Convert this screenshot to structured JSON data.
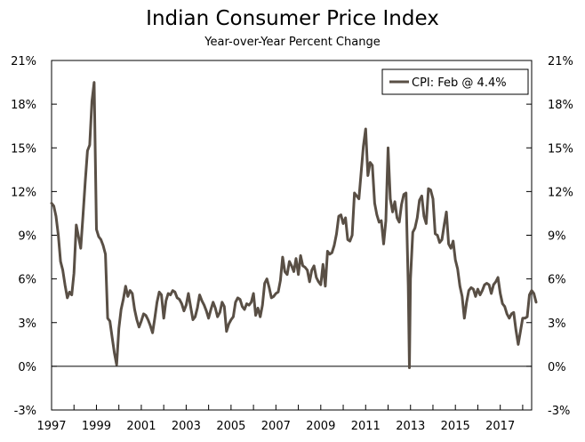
{
  "chart_data": {
    "type": "line",
    "title": "Indian Consumer Price Index",
    "subtitle": "Year-over-Year Percent Change",
    "xlabel": "",
    "ylabel": "",
    "xlim": [
      1997,
      2018.4
    ],
    "ylim": [
      -3,
      21
    ],
    "y_ticks": [
      "-3%",
      "0%",
      "3%",
      "6%",
      "9%",
      "12%",
      "15%",
      "18%",
      "21%"
    ],
    "x_ticks": [
      "1997",
      "1999",
      "2001",
      "2003",
      "2005",
      "2007",
      "2009",
      "2011",
      "2013",
      "2015",
      "2017"
    ],
    "grid": false,
    "legend": "top-right",
    "line_color": "#594F45",
    "series": [
      {
        "name": "CPI: Feb @ 4.4%",
        "points": [
          [
            1997.0,
            11.2
          ],
          [
            1997.1,
            11.0
          ],
          [
            1997.2,
            10.3
          ],
          [
            1997.3,
            9.0
          ],
          [
            1997.4,
            7.2
          ],
          [
            1997.5,
            6.6
          ],
          [
            1997.6,
            5.6
          ],
          [
            1997.7,
            4.7
          ],
          [
            1997.8,
            5.1
          ],
          [
            1997.9,
            4.9
          ],
          [
            1998.0,
            6.4
          ],
          [
            1998.1,
            9.7
          ],
          [
            1998.2,
            8.9
          ],
          [
            1998.3,
            8.1
          ],
          [
            1998.4,
            10.3
          ],
          [
            1998.5,
            12.7
          ],
          [
            1998.6,
            14.8
          ],
          [
            1998.7,
            15.2
          ],
          [
            1998.8,
            18.2
          ],
          [
            1998.9,
            19.5
          ],
          [
            1999.0,
            9.4
          ],
          [
            1999.1,
            8.9
          ],
          [
            1999.2,
            8.7
          ],
          [
            1999.3,
            8.3
          ],
          [
            1999.4,
            7.7
          ],
          [
            1999.5,
            3.3
          ],
          [
            1999.6,
            3.1
          ],
          [
            1999.7,
            2.0
          ],
          [
            1999.8,
            0.9
          ],
          [
            1999.9,
            0.1
          ],
          [
            2000.0,
            2.6
          ],
          [
            2000.1,
            3.9
          ],
          [
            2000.2,
            4.6
          ],
          [
            2000.3,
            5.5
          ],
          [
            2000.4,
            4.8
          ],
          [
            2000.5,
            5.2
          ],
          [
            2000.6,
            5.0
          ],
          [
            2000.7,
            3.9
          ],
          [
            2000.8,
            3.2
          ],
          [
            2000.9,
            2.7
          ],
          [
            2001.0,
            3.1
          ],
          [
            2001.1,
            3.6
          ],
          [
            2001.2,
            3.5
          ],
          [
            2001.3,
            3.2
          ],
          [
            2001.4,
            2.8
          ],
          [
            2001.5,
            2.3
          ],
          [
            2001.6,
            3.3
          ],
          [
            2001.7,
            4.4
          ],
          [
            2001.8,
            5.1
          ],
          [
            2001.9,
            4.9
          ],
          [
            2002.0,
            3.3
          ],
          [
            2002.1,
            4.5
          ],
          [
            2002.2,
            5.0
          ],
          [
            2002.3,
            4.9
          ],
          [
            2002.4,
            5.2
          ],
          [
            2002.5,
            5.1
          ],
          [
            2002.6,
            4.7
          ],
          [
            2002.7,
            4.6
          ],
          [
            2002.8,
            4.3
          ],
          [
            2002.9,
            3.8
          ],
          [
            2003.0,
            4.2
          ],
          [
            2003.1,
            5.0
          ],
          [
            2003.2,
            4.1
          ],
          [
            2003.3,
            3.2
          ],
          [
            2003.4,
            3.4
          ],
          [
            2003.5,
            4.0
          ],
          [
            2003.6,
            4.9
          ],
          [
            2003.7,
            4.5
          ],
          [
            2003.8,
            4.2
          ],
          [
            2003.9,
            3.8
          ],
          [
            2004.0,
            3.3
          ],
          [
            2004.1,
            3.9
          ],
          [
            2004.2,
            4.4
          ],
          [
            2004.3,
            4.0
          ],
          [
            2004.4,
            3.4
          ],
          [
            2004.5,
            3.7
          ],
          [
            2004.6,
            4.4
          ],
          [
            2004.7,
            4.1
          ],
          [
            2004.8,
            2.4
          ],
          [
            2004.9,
            2.9
          ],
          [
            2005.0,
            3.2
          ],
          [
            2005.1,
            3.4
          ],
          [
            2005.2,
            4.4
          ],
          [
            2005.3,
            4.7
          ],
          [
            2005.4,
            4.6
          ],
          [
            2005.5,
            4.1
          ],
          [
            2005.6,
            3.9
          ],
          [
            2005.7,
            4.3
          ],
          [
            2005.8,
            4.2
          ],
          [
            2005.9,
            4.4
          ],
          [
            2006.0,
            5.0
          ],
          [
            2006.1,
            3.5
          ],
          [
            2006.2,
            4.0
          ],
          [
            2006.3,
            3.4
          ],
          [
            2006.4,
            4.2
          ],
          [
            2006.5,
            5.7
          ],
          [
            2006.6,
            6.0
          ],
          [
            2006.7,
            5.4
          ],
          [
            2006.8,
            4.7
          ],
          [
            2006.9,
            4.8
          ],
          [
            2007.0,
            5.0
          ],
          [
            2007.1,
            5.1
          ],
          [
            2007.2,
            5.9
          ],
          [
            2007.3,
            7.5
          ],
          [
            2007.4,
            6.5
          ],
          [
            2007.5,
            6.3
          ],
          [
            2007.6,
            7.2
          ],
          [
            2007.7,
            6.9
          ],
          [
            2007.8,
            6.5
          ],
          [
            2007.9,
            7.4
          ],
          [
            2008.0,
            6.3
          ],
          [
            2008.1,
            7.6
          ],
          [
            2008.2,
            6.9
          ],
          [
            2008.3,
            6.8
          ],
          [
            2008.4,
            6.6
          ],
          [
            2008.5,
            5.8
          ],
          [
            2008.6,
            6.6
          ],
          [
            2008.7,
            6.9
          ],
          [
            2008.8,
            6.1
          ],
          [
            2008.9,
            5.8
          ],
          [
            2009.0,
            5.6
          ],
          [
            2009.1,
            7.0
          ],
          [
            2009.2,
            5.5
          ],
          [
            2009.3,
            7.9
          ],
          [
            2009.4,
            7.7
          ],
          [
            2009.5,
            7.8
          ],
          [
            2009.6,
            8.3
          ],
          [
            2009.7,
            9.1
          ],
          [
            2009.8,
            10.3
          ],
          [
            2009.9,
            10.4
          ],
          [
            2010.0,
            9.8
          ],
          [
            2010.1,
            10.2
          ],
          [
            2010.2,
            8.7
          ],
          [
            2010.3,
            8.6
          ],
          [
            2010.4,
            9.0
          ],
          [
            2010.5,
            11.9
          ],
          [
            2010.6,
            11.7
          ],
          [
            2010.7,
            11.5
          ],
          [
            2010.8,
            13.3
          ],
          [
            2010.9,
            15.1
          ],
          [
            2011.0,
            16.3
          ],
          [
            2011.1,
            13.1
          ],
          [
            2011.2,
            14.0
          ],
          [
            2011.3,
            13.8
          ],
          [
            2011.4,
            11.2
          ],
          [
            2011.5,
            10.4
          ],
          [
            2011.6,
            9.9
          ],
          [
            2011.7,
            10.0
          ],
          [
            2011.8,
            8.4
          ],
          [
            2011.9,
            10.0
          ],
          [
            2012.0,
            15.0
          ],
          [
            2012.1,
            11.5
          ],
          [
            2012.2,
            10.6
          ],
          [
            2012.3,
            11.3
          ],
          [
            2012.4,
            10.2
          ],
          [
            2012.5,
            9.9
          ],
          [
            2012.6,
            11.1
          ],
          [
            2012.7,
            11.8
          ],
          [
            2012.8,
            11.9
          ],
          [
            2012.9,
            5.5
          ],
          [
            2012.95,
            -0.1
          ],
          [
            2013.0,
            6.0
          ],
          [
            2013.1,
            9.2
          ],
          [
            2013.2,
            9.5
          ],
          [
            2013.3,
            10.2
          ],
          [
            2013.4,
            11.4
          ],
          [
            2013.5,
            11.7
          ],
          [
            2013.6,
            10.3
          ],
          [
            2013.7,
            9.8
          ],
          [
            2013.8,
            12.2
          ],
          [
            2013.9,
            12.1
          ],
          [
            2014.0,
            11.5
          ],
          [
            2014.1,
            9.1
          ],
          [
            2014.2,
            9.0
          ],
          [
            2014.3,
            8.5
          ],
          [
            2014.4,
            8.7
          ],
          [
            2014.5,
            9.7
          ],
          [
            2014.6,
            10.6
          ],
          [
            2014.7,
            8.4
          ],
          [
            2014.8,
            8.1
          ],
          [
            2014.9,
            8.6
          ],
          [
            2015.0,
            7.3
          ],
          [
            2015.1,
            6.7
          ],
          [
            2015.2,
            5.5
          ],
          [
            2015.3,
            4.8
          ],
          [
            2015.4,
            3.3
          ],
          [
            2015.5,
            4.4
          ],
          [
            2015.6,
            5.2
          ],
          [
            2015.7,
            5.4
          ],
          [
            2015.8,
            5.3
          ],
          [
            2015.9,
            4.8
          ],
          [
            2016.0,
            5.3
          ],
          [
            2016.1,
            4.9
          ],
          [
            2016.2,
            5.2
          ],
          [
            2016.3,
            5.6
          ],
          [
            2016.4,
            5.7
          ],
          [
            2016.5,
            5.6
          ],
          [
            2016.6,
            5.0
          ],
          [
            2016.7,
            5.6
          ],
          [
            2016.8,
            5.8
          ],
          [
            2016.9,
            6.1
          ],
          [
            2017.0,
            5.0
          ],
          [
            2017.1,
            4.3
          ],
          [
            2017.2,
            4.1
          ],
          [
            2017.3,
            3.6
          ],
          [
            2017.4,
            3.3
          ],
          [
            2017.5,
            3.6
          ],
          [
            2017.6,
            3.7
          ],
          [
            2017.7,
            2.5
          ],
          [
            2017.8,
            1.5
          ],
          [
            2017.9,
            2.4
          ],
          [
            2018.0,
            3.3
          ],
          [
            2018.1,
            3.3
          ],
          [
            2018.2,
            3.4
          ],
          [
            2018.3,
            4.9
          ],
          [
            2018.4,
            5.2
          ],
          [
            2018.5,
            5.0
          ],
          [
            2018.6,
            4.4
          ]
        ]
      }
    ]
  }
}
